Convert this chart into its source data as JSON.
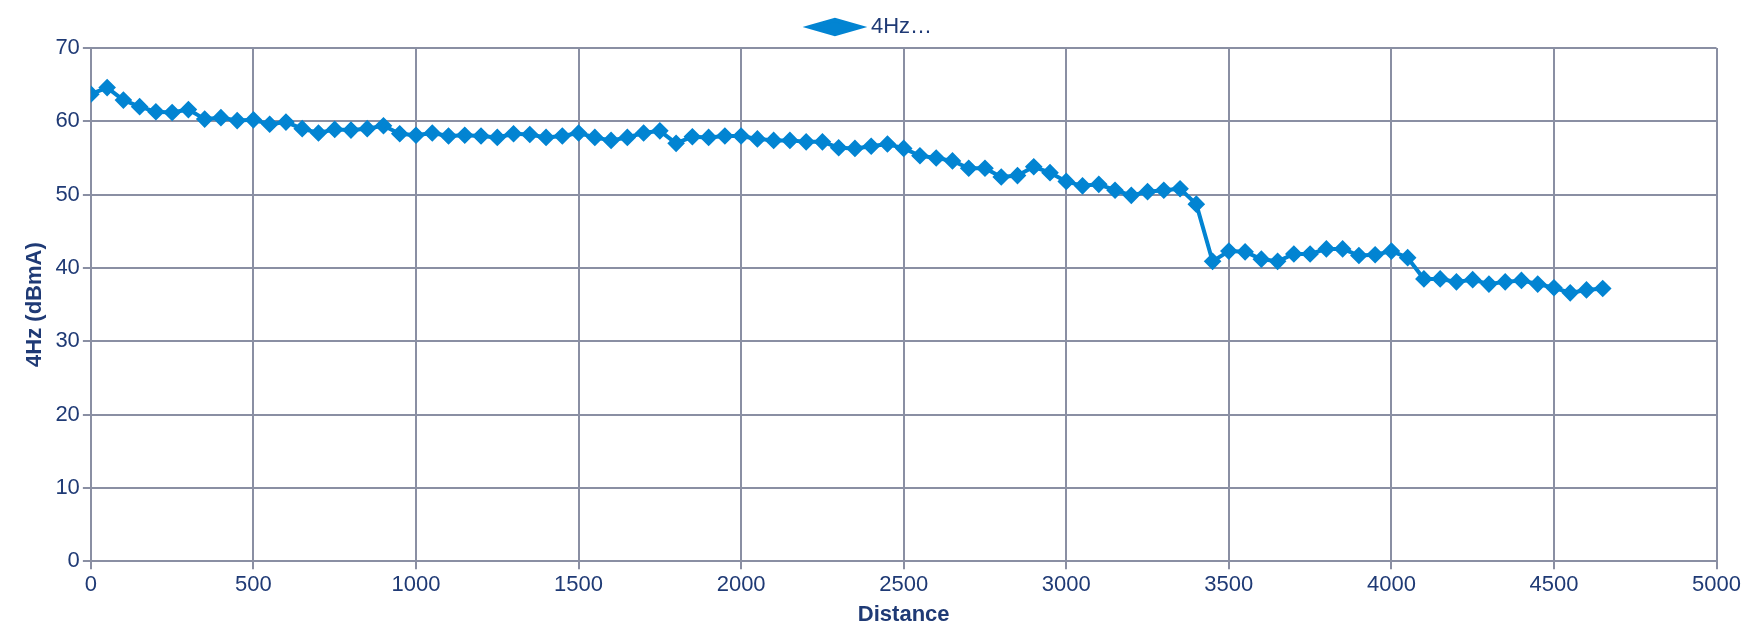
{
  "chart_data": {
    "type": "line",
    "xlabel": "Distance",
    "ylabel": "4Hz (dBmA)",
    "x": [
      0,
      50,
      100,
      150,
      200,
      250,
      300,
      350,
      400,
      450,
      500,
      550,
      600,
      650,
      700,
      750,
      800,
      850,
      900,
      950,
      1000,
      1050,
      1100,
      1150,
      1200,
      1250,
      1300,
      1350,
      1400,
      1450,
      1500,
      1550,
      1600,
      1650,
      1700,
      1750,
      1800,
      1850,
      1900,
      1950,
      2000,
      2050,
      2100,
      2150,
      2200,
      2250,
      2300,
      2350,
      2400,
      2450,
      2500,
      2550,
      2600,
      2650,
      2700,
      2750,
      2800,
      2850,
      2900,
      2950,
      3000,
      3050,
      3100,
      3150,
      3200,
      3250,
      3300,
      3350,
      3400,
      3450,
      3500,
      3550,
      3600,
      3650,
      3700,
      3750,
      3800,
      3850,
      3900,
      3950,
      4000,
      4050,
      4100,
      4150,
      4200,
      4250,
      4300,
      4350,
      4400,
      4450,
      4500,
      4550,
      4600,
      4650
    ],
    "series": [
      {
        "name": "4Hz…",
        "color": "#0284d2",
        "values": [
          63.7,
          64.6,
          62.9,
          62.0,
          61.3,
          61.2,
          61.6,
          60.3,
          60.5,
          60.1,
          60.2,
          59.6,
          59.9,
          59.0,
          58.4,
          58.9,
          58.8,
          59.0,
          59.4,
          58.3,
          58.1,
          58.4,
          58.0,
          58.1,
          58.0,
          57.8,
          58.3,
          58.2,
          57.8,
          58.0,
          58.4,
          57.8,
          57.4,
          57.8,
          58.4,
          58.7,
          57.0,
          57.9,
          57.8,
          58.0,
          58.0,
          57.6,
          57.4,
          57.4,
          57.2,
          57.2,
          56.4,
          56.3,
          56.6,
          56.9,
          56.3,
          55.3,
          55.0,
          54.6,
          53.6,
          53.6,
          52.4,
          52.6,
          53.8,
          53.0,
          51.8,
          51.2,
          51.4,
          50.6,
          49.9,
          50.4,
          50.6,
          50.8,
          48.7,
          40.9,
          42.3,
          42.2,
          41.2,
          40.9,
          41.9,
          41.9,
          42.6,
          42.6,
          41.7,
          41.8,
          42.3,
          41.4,
          38.5,
          38.5,
          38.1,
          38.4,
          37.8,
          38.1,
          38.3,
          37.8,
          37.3,
          36.6,
          37.0,
          37.2
        ]
      }
    ],
    "xlim": [
      0,
      5000
    ],
    "xticks": [
      0,
      500,
      1000,
      1500,
      2000,
      2500,
      3000,
      3500,
      4000,
      4500,
      5000
    ],
    "ylim": [
      0,
      70
    ],
    "yticks": [
      0,
      10,
      20,
      30,
      40,
      50,
      60,
      70
    ],
    "grid": true,
    "legend": "top",
    "marker": "diamond",
    "line_style": "solid"
  }
}
